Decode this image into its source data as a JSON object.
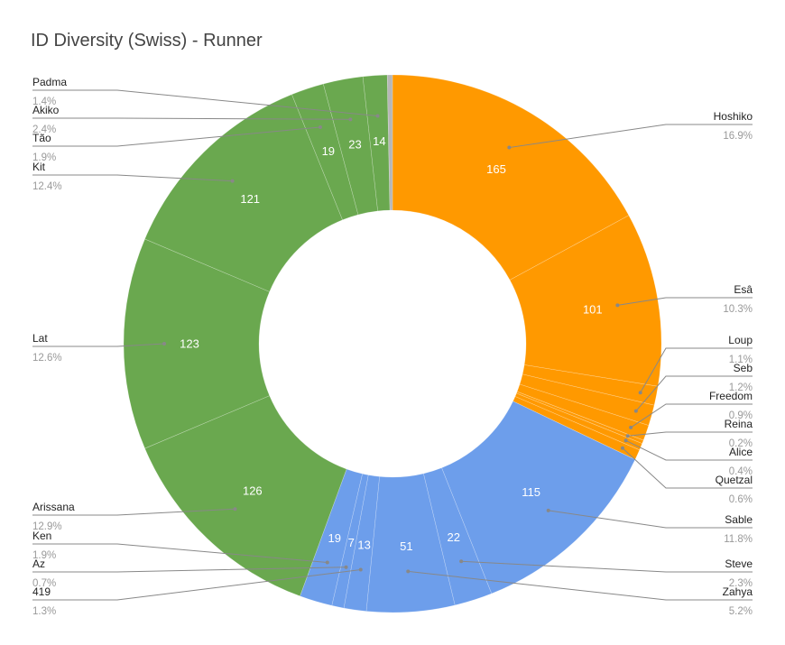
{
  "chart_data": {
    "type": "pie",
    "title": "ID Diversity (Swiss) - Runner",
    "donut": true,
    "slices": [
      {
        "name": "Hoshiko",
        "value": 165,
        "percent": "16.9%",
        "color": "#ff9900"
      },
      {
        "name": "Esâ",
        "value": 101,
        "percent": "10.3%",
        "color": "#ff9900"
      },
      {
        "name": "Loup",
        "value": 11,
        "percent": "1.1%",
        "color": "#ff9900"
      },
      {
        "name": "Seb",
        "value": 12,
        "percent": "1.2%",
        "color": "#ff9900"
      },
      {
        "name": "Freedom",
        "value": 9,
        "percent": "0.9%",
        "color": "#ff9900"
      },
      {
        "name": "Reina",
        "value": 2,
        "percent": "0.2%",
        "color": "#ff9900"
      },
      {
        "name": "Alice",
        "value": 4,
        "percent": "0.4%",
        "color": "#ff9900"
      },
      {
        "name": "Quetzal",
        "value": 6,
        "percent": "0.6%",
        "color": "#ff9900"
      },
      {
        "name": "Sable",
        "value": 115,
        "percent": "11.8%",
        "color": "#6d9eeb"
      },
      {
        "name": "Steve",
        "value": 22,
        "percent": "2.3%",
        "color": "#6d9eeb"
      },
      {
        "name": "Zahya",
        "value": 51,
        "percent": "5.2%",
        "color": "#6d9eeb"
      },
      {
        "name": "419",
        "value": 13,
        "percent": "1.3%",
        "color": "#6d9eeb"
      },
      {
        "name": "Az",
        "value": 7,
        "percent": "0.7%",
        "color": "#6d9eeb"
      },
      {
        "name": "Ken",
        "value": 19,
        "percent": "1.9%",
        "color": "#6d9eeb"
      },
      {
        "name": "Arissana",
        "value": 126,
        "percent": "12.9%",
        "color": "#6aa84f"
      },
      {
        "name": "Lat",
        "value": 123,
        "percent": "12.6%",
        "color": "#6aa84f"
      },
      {
        "name": "Kit",
        "value": 121,
        "percent": "12.4%",
        "color": "#6aa84f"
      },
      {
        "name": "Tão",
        "value": 19,
        "percent": "1.9%",
        "color": "#6aa84f"
      },
      {
        "name": "Akiko",
        "value": 23,
        "percent": "2.4%",
        "color": "#6aa84f"
      },
      {
        "name": "Padma",
        "value": 14,
        "percent": "1.4%",
        "color": "#6aa84f"
      },
      {
        "name": "",
        "value": 3,
        "percent": "",
        "color": "#b7b7b7"
      }
    ],
    "inside_labels": [
      "Hoshiko",
      "Esâ",
      "Sable",
      "Steve",
      "Zahya",
      "419",
      "Az",
      "Ken",
      "Arissana",
      "Lat",
      "Kit",
      "Tão",
      "Akiko",
      "Padma"
    ]
  }
}
